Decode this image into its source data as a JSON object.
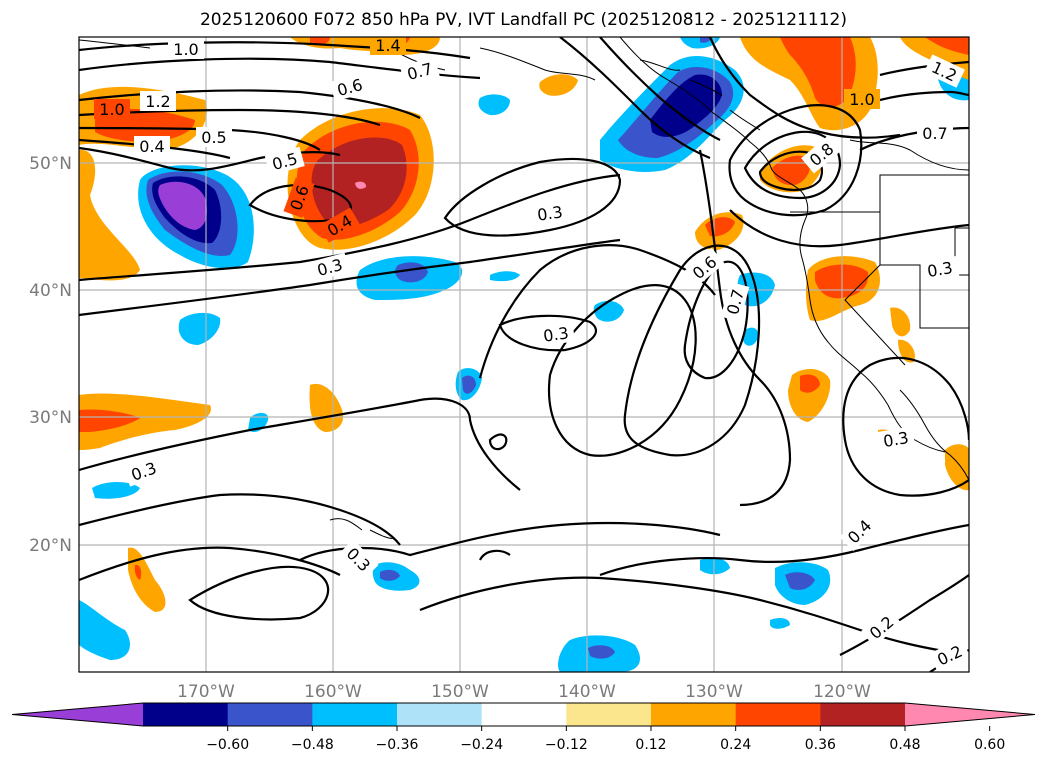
{
  "title": "2025120600 F072 850 hPa PV, IVT Landfall PC (2025120812 - 2025121112)",
  "lat_labels": [
    "50°N",
    "40°N",
    "30°N",
    "20°N"
  ],
  "lon_labels": [
    "170°W",
    "160°W",
    "150°W",
    "140°W",
    "130°W",
    "120°W"
  ],
  "colorbar": {
    "ticks": [
      "−0.60",
      "−0.48",
      "−0.36",
      "−0.24",
      "−0.12",
      "0.12",
      "0.24",
      "0.36",
      "0.48",
      "0.60"
    ],
    "colors": [
      "#9a3ed8",
      "#00008b",
      "#3a55cc",
      "#00bfff",
      "#ade2f8",
      "#ffffff",
      "#fbe68e",
      "#ffa500",
      "#ff4500",
      "#b22222",
      "#ff88b0"
    ]
  },
  "contour_labels": [
    "1.0",
    "1.4",
    "0.7",
    "0.6",
    "1.0",
    "1.2",
    "0.4",
    "0.5",
    "0.6",
    "0.5",
    "0.4",
    "0.3",
    "0.3",
    "0.3",
    "0.6",
    "0.7",
    "0.8",
    "1.0",
    "0.7",
    "1.2",
    "0.3",
    "0.3",
    "0.3",
    "0.4",
    "0.3",
    "0.2",
    "0.2"
  ]
}
